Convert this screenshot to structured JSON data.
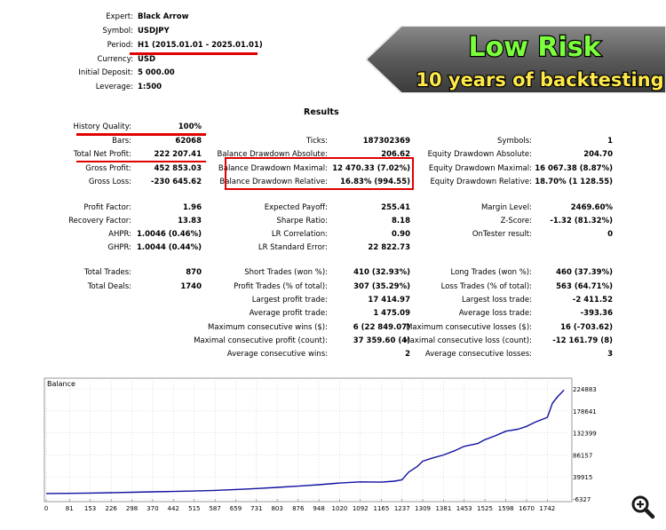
{
  "header": {
    "rows": [
      {
        "label": "Expert:",
        "value": "Black Arrow"
      },
      {
        "label": "Symbol:",
        "value": "USDJPY"
      },
      {
        "label": "Period:",
        "value": "H1 (2015.01.01 - 2025.01.01)"
      },
      {
        "label": "Currency:",
        "value": "USD"
      },
      {
        "label": "Initial Deposit:",
        "value": "5 000.00"
      },
      {
        "label": "Leverage:",
        "value": "1:500"
      }
    ]
  },
  "banner": {
    "line1": "Low Risk",
    "line2": "10 years of backtesting"
  },
  "results_title": "Results",
  "stats": {
    "history_quality": {
      "label": "History Quality:",
      "value": "100%"
    },
    "bars": {
      "label": "Bars:",
      "value": "62068"
    },
    "ticks": {
      "label": "Ticks:",
      "value": "187302369"
    },
    "symbols": {
      "label": "Symbols:",
      "value": "1"
    },
    "total_net_profit": {
      "label": "Total Net Profit:",
      "value": "222 207.41"
    },
    "balance_dd_abs": {
      "label": "Balance Drawdown Absolute:",
      "value": "206.62"
    },
    "equity_dd_abs": {
      "label": "Equity Drawdown Absolute:",
      "value": "204.70"
    },
    "gross_profit": {
      "label": "Gross Profit:",
      "value": "452 853.03"
    },
    "balance_dd_max": {
      "label": "Balance Drawdown Maximal:",
      "value": "12 470.33 (7.02%)"
    },
    "equity_dd_max": {
      "label": "Equity Drawdown Maximal:",
      "value": "16 067.38 (8.87%)"
    },
    "gross_loss": {
      "label": "Gross Loss:",
      "value": "-230 645.62"
    },
    "balance_dd_rel": {
      "label": "Balance Drawdown Relative:",
      "value": "16.83% (994.55)"
    },
    "equity_dd_rel": {
      "label": "Equity Drawdown Relative:",
      "value": "18.70% (1 128.55)"
    },
    "profit_factor": {
      "label": "Profit Factor:",
      "value": "1.96"
    },
    "expected_payoff": {
      "label": "Expected Payoff:",
      "value": "255.41"
    },
    "margin_level": {
      "label": "Margin Level:",
      "value": "2469.60%"
    },
    "recovery_factor": {
      "label": "Recovery Factor:",
      "value": "13.83"
    },
    "sharpe_ratio": {
      "label": "Sharpe Ratio:",
      "value": "8.18"
    },
    "z_score": {
      "label": "Z-Score:",
      "value": "-1.32 (81.32%)"
    },
    "ahpr": {
      "label": "AHPR:",
      "value": "1.0046 (0.46%)"
    },
    "lr_correlation": {
      "label": "LR Correlation:",
      "value": "0.90"
    },
    "ontester_result": {
      "label": "OnTester result:",
      "value": "0"
    },
    "ghpr": {
      "label": "GHPR:",
      "value": "1.0044 (0.44%)"
    },
    "lr_std_error": {
      "label": "LR Standard Error:",
      "value": "22 822.73"
    },
    "total_trades": {
      "label": "Total Trades:",
      "value": "870"
    },
    "short_trades": {
      "label": "Short Trades (won %):",
      "value": "410 (32.93%)"
    },
    "long_trades": {
      "label": "Long Trades (won %):",
      "value": "460 (37.39%)"
    },
    "total_deals": {
      "label": "Total Deals:",
      "value": "1740"
    },
    "profit_trades": {
      "label": "Profit Trades (% of total):",
      "value": "307 (35.29%)"
    },
    "loss_trades": {
      "label": "Loss Trades (% of total):",
      "value": "563 (64.71%)"
    },
    "largest_profit": {
      "label": "Largest profit trade:",
      "value": "17 414.97"
    },
    "largest_loss": {
      "label": "Largest loss trade:",
      "value": "-2 411.52"
    },
    "avg_profit": {
      "label": "Average profit trade:",
      "value": "1 475.09"
    },
    "avg_loss": {
      "label": "Average loss trade:",
      "value": "-393.36"
    },
    "max_consec_wins": {
      "label": "Maximum consecutive wins ($):",
      "value": "6 (22 849.07)"
    },
    "max_consec_losses": {
      "label": "Maximum consecutive losses ($):",
      "value": "16 (-703.62)"
    },
    "maximal_consec_profit": {
      "label": "Maximal consecutive profit (count):",
      "value": "37 359.60 (4)"
    },
    "maximal_consec_loss": {
      "label": "Maximal consecutive loss (count):",
      "value": "-12 161.79 (8)"
    },
    "avg_consec_wins": {
      "label": "Average consecutive wins:",
      "value": "2"
    },
    "avg_consec_losses": {
      "label": "Average consecutive losses:",
      "value": "3"
    }
  },
  "chart_data": {
    "type": "line",
    "title": "Balance",
    "x_ticks": [
      "0",
      "81",
      "153",
      "226",
      "298",
      "370",
      "442",
      "515",
      "587",
      "659",
      "731",
      "803",
      "876",
      "948",
      "1020",
      "1092",
      "1165",
      "1237",
      "1309",
      "1381",
      "1453",
      "1525",
      "1598",
      "1670",
      "1742"
    ],
    "y_ticks": [
      "224883",
      "178641",
      "132399",
      "86157",
      "39915",
      "-6327"
    ],
    "ylim": [
      -6327,
      224883
    ],
    "xlim": [
      0,
      1815
    ],
    "series": [
      {
        "color": "#1010a0",
        "x": [
          0,
          81,
          153,
          226,
          298,
          370,
          442,
          515,
          587,
          659,
          731,
          803,
          876,
          948,
          1020,
          1092,
          1165,
          1210,
          1237,
          1260,
          1290,
          1309,
          1340,
          1381,
          1420,
          1453,
          1500,
          1525,
          1560,
          1598,
          1640,
          1670,
          1700,
          1742,
          1760,
          1780,
          1800
        ],
        "y": [
          5000,
          5400,
          6000,
          6800,
          7600,
          8500,
          9300,
          10200,
          11600,
          13500,
          15500,
          18000,
          20500,
          23500,
          27000,
          29500,
          29000,
          31000,
          34000,
          50000,
          62000,
          73000,
          79000,
          86000,
          95000,
          104000,
          110000,
          118000,
          126000,
          136000,
          140000,
          146000,
          155000,
          165000,
          195000,
          210000,
          222207
        ]
      }
    ]
  },
  "zoom_icon": "zoom-in-icon"
}
